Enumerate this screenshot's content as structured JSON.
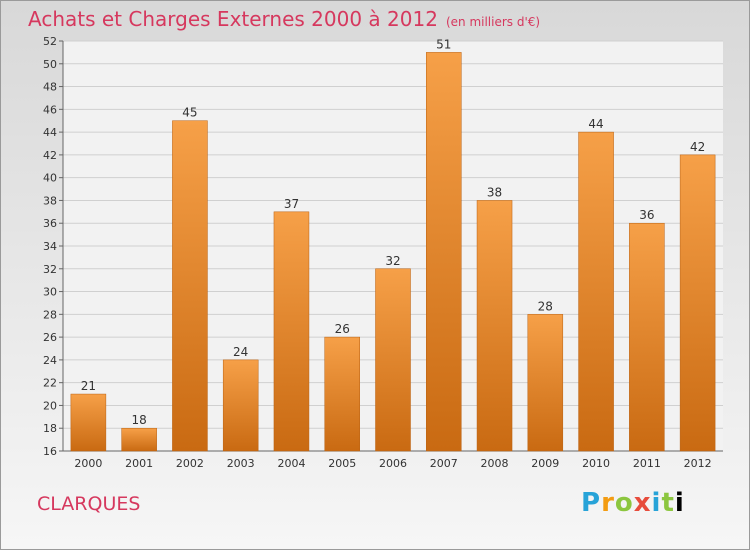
{
  "header": {
    "title": "Achats et Charges Externes 2000 à 2012",
    "subtitle": "(en milliers d'€)"
  },
  "footer": {
    "commune": "CLARQUES",
    "logo_text": "Proxiti"
  },
  "colors": {
    "bar_top": "#f6a048",
    "bar_bottom": "#c96a12",
    "title": "#d6385e"
  },
  "chart_data": {
    "type": "bar",
    "categories": [
      "2000",
      "2001",
      "2002",
      "2003",
      "2004",
      "2005",
      "2006",
      "2007",
      "2008",
      "2009",
      "2010",
      "2011",
      "2012"
    ],
    "values": [
      21,
      18,
      45,
      24,
      37,
      26,
      32,
      51,
      38,
      28,
      44,
      36,
      42
    ],
    "ylim": [
      16,
      52
    ],
    "yticks": [
      16,
      18,
      20,
      22,
      24,
      26,
      28,
      30,
      32,
      34,
      36,
      38,
      40,
      42,
      44,
      46,
      48,
      50,
      52
    ],
    "grid": true,
    "title": "Achats et Charges Externes 2000 à 2012",
    "subtitle": "(en milliers d'€)"
  }
}
